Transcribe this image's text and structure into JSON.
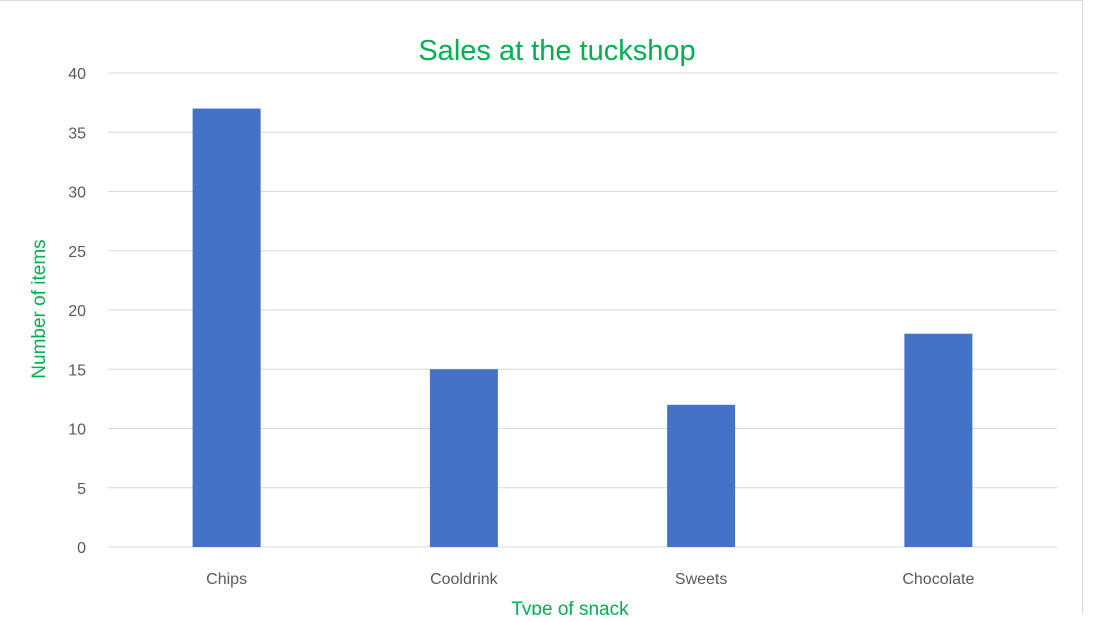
{
  "chart_data": {
    "type": "bar",
    "title": "Sales at the tuckshop",
    "xlabel": "Type of snack",
    "ylabel": "Number of items",
    "categories": [
      "Chips",
      "Cooldrink",
      "Sweets",
      "Chocolate"
    ],
    "values": [
      37,
      15,
      12,
      18
    ],
    "ylim": [
      0,
      40
    ],
    "yticks": [
      0,
      5,
      10,
      15,
      20,
      25,
      30,
      35,
      40
    ],
    "grid": true,
    "legend": "none",
    "colors": {
      "bar": "#4472C4",
      "title": "#00B050",
      "axis_titles": "#00B050",
      "gridline": "#D9D9D9",
      "tick_labels": "#595959"
    }
  }
}
